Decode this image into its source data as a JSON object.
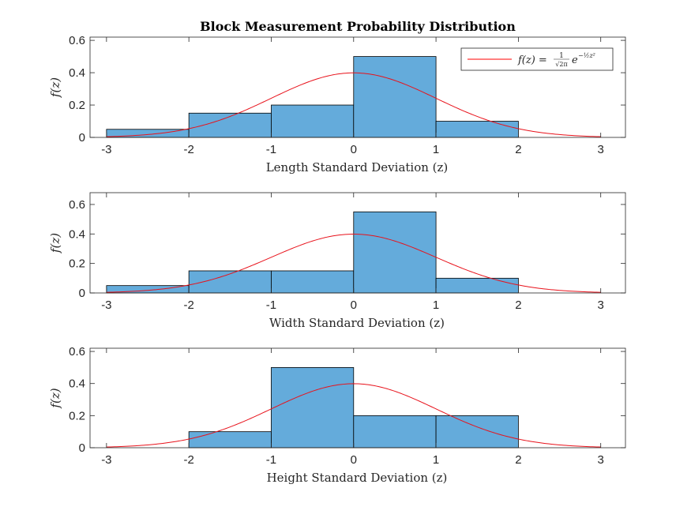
{
  "figure_title": "Block Measurement Probability Distribution",
  "legend": {
    "entry": "f(z) = ¹⁄√2π e^(−½ z²)",
    "label_prefix": "f(z) = ",
    "frac_num": "1",
    "frac_den": "√2π",
    "base": "e",
    "exponent": "−½z²",
    "line_color": "#ff0000",
    "placement": "top-right"
  },
  "colors": {
    "bar_fill": "#64abdb",
    "bar_edge": "#000000",
    "curve": "#e8121b",
    "axis": "#262626"
  },
  "chart_data": [
    {
      "type": "bar",
      "title": "Block Measurement Probability Distribution",
      "xlabel": "Length Standard Deviation (z)",
      "ylabel": "f(z)",
      "bin_edges": [
        -3,
        -2,
        -1,
        0,
        1,
        2
      ],
      "values": [
        0.05,
        0.15,
        0.2,
        0.5,
        0.1
      ],
      "curve": "standard normal pdf",
      "xlim": [
        -3.2,
        3.3
      ],
      "ylim": [
        0,
        0.62
      ],
      "xticks": [
        -3,
        -2,
        -1,
        0,
        1,
        2,
        3
      ],
      "yticks": [
        0,
        0.2,
        0.4,
        0.6
      ],
      "xticklabels": [
        "-3",
        "-2",
        "-1",
        "0",
        "1",
        "2",
        "3"
      ],
      "yticklabels": [
        "0",
        "0.2",
        "0.4",
        "0.6"
      ],
      "legend": true,
      "grid": false
    },
    {
      "type": "bar",
      "xlabel": "Width Standard Deviation (z)",
      "ylabel": "f(z)",
      "bin_edges": [
        -3,
        -2,
        -1,
        0,
        1,
        2
      ],
      "values": [
        0.05,
        0.15,
        0.15,
        0.55,
        0.1
      ],
      "curve": "standard normal pdf",
      "xlim": [
        -3.2,
        3.3
      ],
      "ylim": [
        0,
        0.68
      ],
      "xticks": [
        -3,
        -2,
        -1,
        0,
        1,
        2,
        3
      ],
      "yticks": [
        0,
        0.2,
        0.4,
        0.6
      ],
      "xticklabels": [
        "-3",
        "-2",
        "-1",
        "0",
        "1",
        "2",
        "3"
      ],
      "yticklabels": [
        "0",
        "0.2",
        "0.4",
        "0.6"
      ],
      "legend": false,
      "grid": false
    },
    {
      "type": "bar",
      "xlabel": "Height Standard Deviation (z)",
      "ylabel": "f(z)",
      "bin_edges": [
        -2,
        -1,
        0,
        1,
        2
      ],
      "values": [
        0.1,
        0.5,
        0.2,
        0.2
      ],
      "curve": "standard normal pdf",
      "xlim": [
        -3.2,
        3.3
      ],
      "ylim": [
        0,
        0.62
      ],
      "xticks": [
        -3,
        -2,
        -1,
        0,
        1,
        2,
        3
      ],
      "yticks": [
        0,
        0.2,
        0.4,
        0.6
      ],
      "xticklabels": [
        "-3",
        "-2",
        "-1",
        "0",
        "1",
        "2",
        "3"
      ],
      "yticklabels": [
        "0",
        "0.2",
        "0.4",
        "0.6"
      ],
      "legend": false,
      "grid": false
    }
  ]
}
